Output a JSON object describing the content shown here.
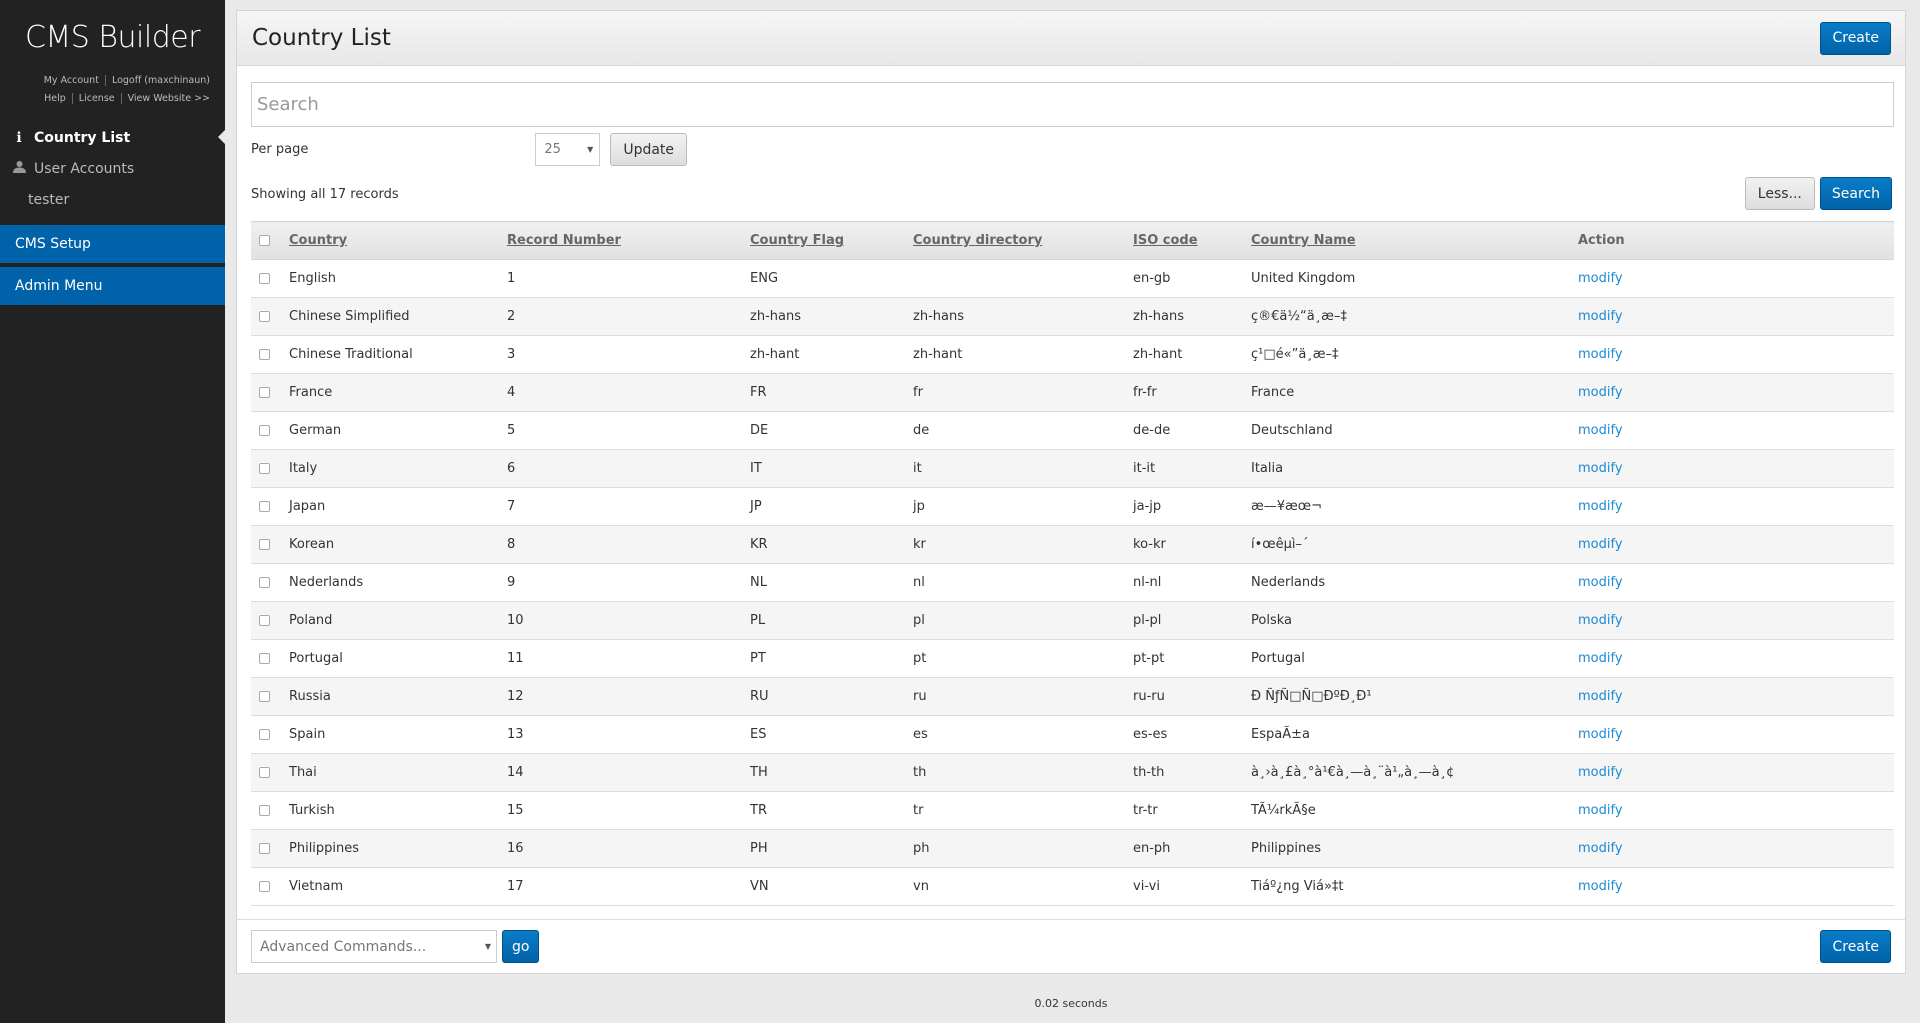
{
  "sidebar": {
    "brand": "CMS Builder",
    "links": [
      "My Account",
      "Logoff (maxchinaun)",
      "Help",
      "License",
      "View Website >>"
    ],
    "nav": [
      {
        "label": "Country List",
        "icon": "info-icon",
        "active": true
      },
      {
        "label": "User Accounts",
        "icon": "user-icon"
      },
      {
        "label": "tester"
      }
    ],
    "sections": [
      "CMS Setup",
      "Admin Menu"
    ]
  },
  "header": {
    "title": "Country List",
    "create_label": "Create"
  },
  "search": {
    "placeholder": "Search"
  },
  "perpage": {
    "label": "Per page",
    "value": "25",
    "update_label": "Update"
  },
  "status": "Showing all 17 records",
  "buttons": {
    "less": "Less...",
    "search": "Search",
    "go": "go",
    "create": "Create"
  },
  "table": {
    "columns": [
      "Country",
      "Record Number",
      "Country Flag",
      "Country directory",
      "ISO code",
      "Country Name",
      "Action"
    ],
    "rows": [
      [
        "English",
        "1",
        "ENG",
        "",
        "en-gb",
        "United Kingdom",
        "modify"
      ],
      [
        "Chinese Simplified",
        "2",
        "zh-hans",
        "zh-hans",
        "zh-hans",
        "ç®€ä½“ä¸­æ–‡",
        "modify"
      ],
      [
        "Chinese Traditional",
        "3",
        "zh-hant",
        "zh-hant",
        "zh-hant",
        "ç¹□é«”ä¸­æ–‡",
        "modify"
      ],
      [
        "France",
        "4",
        "FR",
        "fr",
        "fr-fr",
        "France",
        "modify"
      ],
      [
        "German",
        "5",
        "DE",
        "de",
        "de-de",
        "Deutschland",
        "modify"
      ],
      [
        "Italy",
        "6",
        "IT",
        "it",
        "it-it",
        "Italia",
        "modify"
      ],
      [
        "Japan",
        "7",
        "JP",
        "jp",
        "ja-jp",
        "æ—¥æœ¬",
        "modify"
      ],
      [
        "Korean",
        "8",
        "KR",
        "kr",
        "ko-kr",
        "í•œêµ­ì–´",
        "modify"
      ],
      [
        "Nederlands",
        "9",
        "NL",
        "nl",
        "nl-nl",
        "Nederlands",
        "modify"
      ],
      [
        "Poland",
        "10",
        "PL",
        "pl",
        "pl-pl",
        "Polska",
        "modify"
      ],
      [
        "Portugal",
        "11",
        "PT",
        "pt",
        "pt-pt",
        "Portugal",
        "modify"
      ],
      [
        "Russia",
        "12",
        "RU",
        "ru",
        "ru-ru",
        "Ð ÑƒÑ□Ñ□ÐºÐ¸Ð¹",
        "modify"
      ],
      [
        "Spain",
        "13",
        "ES",
        "es",
        "es-es",
        "EspaÃ±a",
        "modify"
      ],
      [
        "Thai",
        "14",
        "TH",
        "th",
        "th-th",
        "à¸›à¸£à¸°à¹€à¸—à¸¨à¹„à¸—à¸¢",
        "modify"
      ],
      [
        "Turkish",
        "15",
        "TR",
        "tr",
        "tr-tr",
        "TÃ¼rkÃ§e",
        "modify"
      ],
      [
        "Philippines",
        "16",
        "PH",
        "ph",
        "en-ph",
        "Philippines",
        "modify"
      ],
      [
        "Vietnam",
        "17",
        "VN",
        "vn",
        "vi-vi",
        "Tiáº¿ng Viá»‡t",
        "modify"
      ]
    ]
  },
  "footer": {
    "advanced_placeholder": "Advanced Commands...",
    "timing": "0.02 seconds"
  },
  "colors": {
    "sidebar": "#222222",
    "accent": "#0062a8",
    "link": "#1a8ad4"
  }
}
